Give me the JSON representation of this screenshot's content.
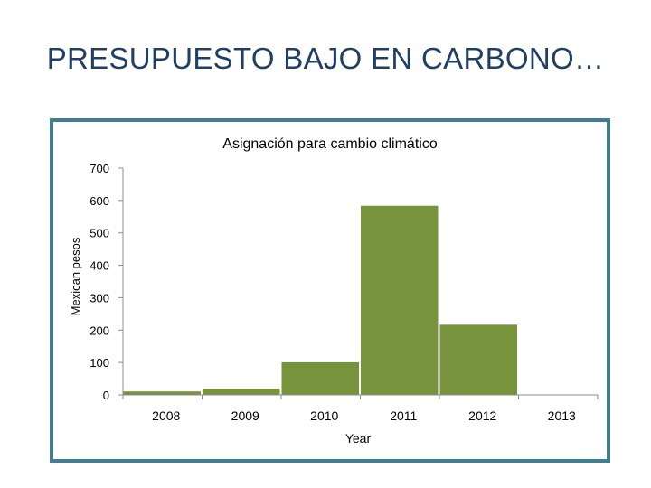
{
  "slide": {
    "title": "PRESUPUESTO BAJO EN CARBONO…"
  },
  "colors": {
    "bar": "#77933c",
    "frame": "#3f7f8f",
    "title": "#1f3f66",
    "axis": "#8c8c8c"
  },
  "chart_data": {
    "type": "bar",
    "title": "Asignación para cambio climático",
    "xlabel": "Year",
    "ylabel": "Mexican pesos",
    "categories": [
      "2008",
      "2009",
      "2010",
      "2011",
      "2012",
      "2013"
    ],
    "values": [
      12,
      20,
      102,
      585,
      218,
      0
    ],
    "ylim": [
      0,
      700
    ],
    "yticks": [
      "0",
      "100",
      "200",
      "300",
      "400",
      "500",
      "600",
      "700"
    ],
    "grid": false,
    "legend": "none"
  }
}
